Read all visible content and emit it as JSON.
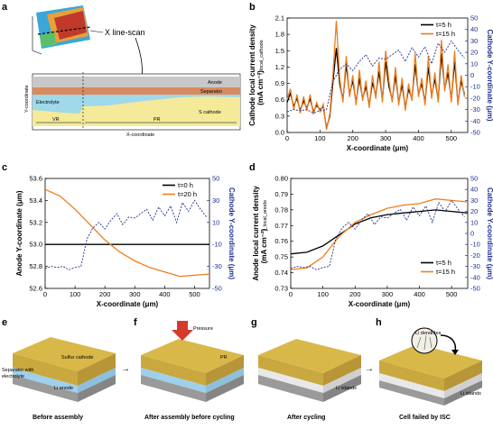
{
  "panel_a": {
    "label": "a",
    "callout": "X line-scan",
    "layers": [
      "Anode",
      "Separator",
      "Electrolyte",
      "S cathode"
    ],
    "regions": [
      "VR",
      "PR"
    ],
    "xlabel": "X-coordinate",
    "ylabel": "Y-coordinate"
  },
  "panel_e": {
    "label": "e",
    "caption": "Before assembly",
    "texts": [
      "Sulfur cathode",
      "Li anode",
      "Separator with",
      "electrolyte"
    ]
  },
  "panel_f": {
    "label": "f",
    "caption": "After assembly before cycling",
    "texts": [
      "Pressure",
      "PR"
    ]
  },
  "panel_g": {
    "label": "g",
    "caption": "After cycling",
    "texts": [
      "Li islands"
    ]
  },
  "panel_h": {
    "label": "h",
    "caption": "Cell failed by ISC",
    "texts": [
      "Li dendrites",
      "Li islands"
    ]
  },
  "colors": {
    "black": "#000000",
    "orange": "#f07d1a",
    "navy": "#1f2f8f"
  },
  "chart_data": [
    {
      "id": "b",
      "label": "b",
      "type": "line",
      "xlabel": "X-coordinate (μm)",
      "ylabel": "Cathode local current density",
      "ylabel2": "(mA cm⁻²)",
      "ylabel_sub": "I_local_cathode",
      "ylabel_right": "Cathode Y-coordinate (μm)",
      "xlim": [
        0,
        550
      ],
      "ylim": [
        0,
        2.1
      ],
      "ylim_right": [
        -50,
        50
      ],
      "xticks": [
        0,
        100,
        200,
        300,
        400,
        500
      ],
      "yticks": [
        0,
        0.3,
        0.6,
        0.9,
        1.2,
        1.5,
        1.8,
        2.1
      ],
      "yticks_right": [
        -50,
        -40,
        -30,
        -20,
        -10,
        0,
        10,
        20,
        30,
        40,
        50
      ],
      "legend": "top-right",
      "series": [
        {
          "name": "t=5 h",
          "color": "#000000",
          "x": [
            0,
            10,
            20,
            30,
            40,
            50,
            60,
            70,
            80,
            90,
            100,
            110,
            120,
            130,
            140,
            150,
            160,
            170,
            180,
            190,
            200,
            210,
            220,
            230,
            240,
            250,
            260,
            270,
            280,
            290,
            300,
            310,
            320,
            330,
            340,
            350,
            360,
            370,
            380,
            390,
            400,
            410,
            420,
            430,
            440,
            450,
            460,
            470,
            480,
            490,
            500,
            510,
            520,
            530,
            540
          ],
          "y": [
            0.55,
            0.72,
            0.48,
            0.63,
            0.4,
            0.58,
            0.45,
            0.62,
            0.38,
            0.5,
            0.42,
            0.48,
            0.08,
            0.3,
            0.95,
            1.55,
            0.9,
            0.6,
            1.25,
            0.7,
            0.95,
            0.55,
            1.0,
            0.62,
            0.85,
            0.5,
            0.92,
            0.68,
            1.12,
            0.6,
            1.3,
            0.85,
            0.6,
            1.05,
            0.55,
            0.88,
            0.45,
            0.8,
            0.62,
            1.25,
            0.7,
            0.9,
            0.55,
            1.2,
            0.68,
            0.98,
            0.6,
            1.45,
            0.8,
            1.1,
            0.6,
            1.3,
            0.55,
            0.95,
            0.7
          ]
        },
        {
          "name": "t=15 h",
          "color": "#f07d1a",
          "x": [
            0,
            10,
            20,
            30,
            40,
            50,
            60,
            70,
            80,
            90,
            100,
            110,
            120,
            130,
            140,
            150,
            160,
            170,
            180,
            190,
            200,
            210,
            220,
            230,
            240,
            250,
            260,
            270,
            280,
            290,
            300,
            310,
            320,
            330,
            340,
            350,
            360,
            370,
            380,
            390,
            400,
            410,
            420,
            430,
            440,
            450,
            460,
            470,
            480,
            490,
            500,
            510,
            520,
            530,
            540
          ],
          "y": [
            0.6,
            0.8,
            0.42,
            0.7,
            0.35,
            0.66,
            0.4,
            0.7,
            0.33,
            0.55,
            0.38,
            0.52,
            0.05,
            0.34,
            1.1,
            2.05,
            1.0,
            0.55,
            1.4,
            0.65,
            1.05,
            0.5,
            1.15,
            0.58,
            0.95,
            0.45,
            1.05,
            0.62,
            1.3,
            0.55,
            1.5,
            0.95,
            0.55,
            1.2,
            0.5,
            1.0,
            0.4,
            0.9,
            0.58,
            1.45,
            0.65,
            1.0,
            0.5,
            1.4,
            0.62,
            1.1,
            0.55,
            1.7,
            0.75,
            1.25,
            0.55,
            1.5,
            0.5,
            1.05,
            0.65
          ]
        },
        {
          "name": "Cathode Y-coordinate",
          "color": "#1f2f8f",
          "axis": "right",
          "x": [
            0,
            20,
            40,
            60,
            80,
            100,
            120,
            140,
            160,
            180,
            200,
            220,
            240,
            260,
            280,
            300,
            320,
            340,
            360,
            380,
            400,
            420,
            440,
            460,
            480,
            500,
            520,
            540
          ],
          "y": [
            -32,
            -30,
            -31,
            -30,
            -33,
            -31,
            -30,
            -5,
            5,
            10,
            4,
            12,
            18,
            8,
            15,
            14,
            18,
            22,
            12,
            24,
            16,
            25,
            10,
            28,
            20,
            30,
            22,
            15
          ]
        }
      ]
    },
    {
      "id": "c",
      "label": "c",
      "type": "line",
      "xlabel": "X-coordinate (μm)",
      "ylabel": "Anode Y-coordinate (μm)",
      "ylabel_right": "Cathode Y-coordinate (μm)",
      "xlim": [
        0,
        550
      ],
      "ylim": [
        52.6,
        53.6
      ],
      "ylim_right": [
        -50,
        50
      ],
      "xticks": [
        0,
        100,
        200,
        300,
        400,
        500
      ],
      "yticks": [
        52.6,
        52.8,
        53.0,
        53.2,
        53.4,
        53.6
      ],
      "yticks_right": [
        -50,
        -30,
        -10,
        10,
        30,
        50
      ],
      "legend": "top-right",
      "series": [
        {
          "name": "t=0 h",
          "color": "#000000",
          "x": [
            0,
            550
          ],
          "y": [
            53.0,
            53.0
          ]
        },
        {
          "name": "t=20 h",
          "color": "#f07d1a",
          "x": [
            0,
            50,
            100,
            150,
            200,
            250,
            300,
            350,
            400,
            450,
            500,
            550
          ],
          "y": [
            53.5,
            53.44,
            53.32,
            53.18,
            53.04,
            52.93,
            52.85,
            52.79,
            52.75,
            52.71,
            52.72,
            52.73
          ]
        },
        {
          "name": "Cathode Y-coordinate",
          "color": "#1f2f8f",
          "axis": "right",
          "x": [
            0,
            20,
            40,
            60,
            80,
            100,
            120,
            140,
            160,
            180,
            200,
            220,
            240,
            260,
            280,
            300,
            320,
            340,
            360,
            380,
            400,
            420,
            440,
            460,
            480,
            500,
            520,
            540
          ],
          "y": [
            -32,
            -30,
            -31,
            -30,
            -33,
            -31,
            -30,
            -5,
            5,
            10,
            4,
            12,
            18,
            8,
            15,
            14,
            18,
            22,
            12,
            24,
            16,
            25,
            10,
            28,
            20,
            30,
            22,
            15
          ]
        }
      ]
    },
    {
      "id": "d",
      "label": "d",
      "type": "line",
      "xlabel": "X-coordinate (μm)",
      "ylabel": "Anode local current density",
      "ylabel2": "(mA cm⁻²)",
      "ylabel_sub": "I_local_anode",
      "ylabel_right": "Cathode Y-coordinate (μm)",
      "xlim": [
        0,
        550
      ],
      "ylim": [
        0.73,
        0.8
      ],
      "ylim_right": [
        -50,
        50
      ],
      "xticks": [
        0,
        100,
        200,
        300,
        400,
        500
      ],
      "yticks": [
        0.73,
        0.74,
        0.75,
        0.76,
        0.77,
        0.78,
        0.79,
        0.8
      ],
      "yticks_right": [
        -50,
        -40,
        -30,
        -20,
        -10,
        0,
        10,
        20,
        30,
        40,
        50
      ],
      "legend": "bottom-right",
      "series": [
        {
          "name": "t=5 h",
          "color": "#000000",
          "x": [
            0,
            50,
            100,
            150,
            200,
            250,
            300,
            350,
            400,
            450,
            500,
            550
          ],
          "y": [
            0.752,
            0.753,
            0.757,
            0.764,
            0.771,
            0.775,
            0.777,
            0.778,
            0.779,
            0.78,
            0.779,
            0.778
          ]
        },
        {
          "name": "t=15 h",
          "color": "#f07d1a",
          "x": [
            0,
            50,
            100,
            150,
            200,
            250,
            300,
            350,
            400,
            450,
            500,
            550
          ],
          "y": [
            0.742,
            0.743,
            0.75,
            0.763,
            0.772,
            0.777,
            0.781,
            0.783,
            0.784,
            0.787,
            0.786,
            0.785
          ]
        },
        {
          "name": "Cathode Y-coordinate",
          "color": "#1f2f8f",
          "axis": "right",
          "x": [
            0,
            20,
            40,
            60,
            80,
            100,
            120,
            140,
            160,
            180,
            200,
            220,
            240,
            260,
            280,
            300,
            320,
            340,
            360,
            380,
            400,
            420,
            440,
            460,
            480,
            500,
            520,
            540
          ],
          "y": [
            -32,
            -30,
            -31,
            -30,
            -33,
            -31,
            -30,
            -5,
            5,
            10,
            4,
            12,
            18,
            8,
            15,
            14,
            18,
            22,
            12,
            24,
            16,
            25,
            10,
            28,
            20,
            30,
            22,
            15
          ]
        }
      ]
    }
  ]
}
